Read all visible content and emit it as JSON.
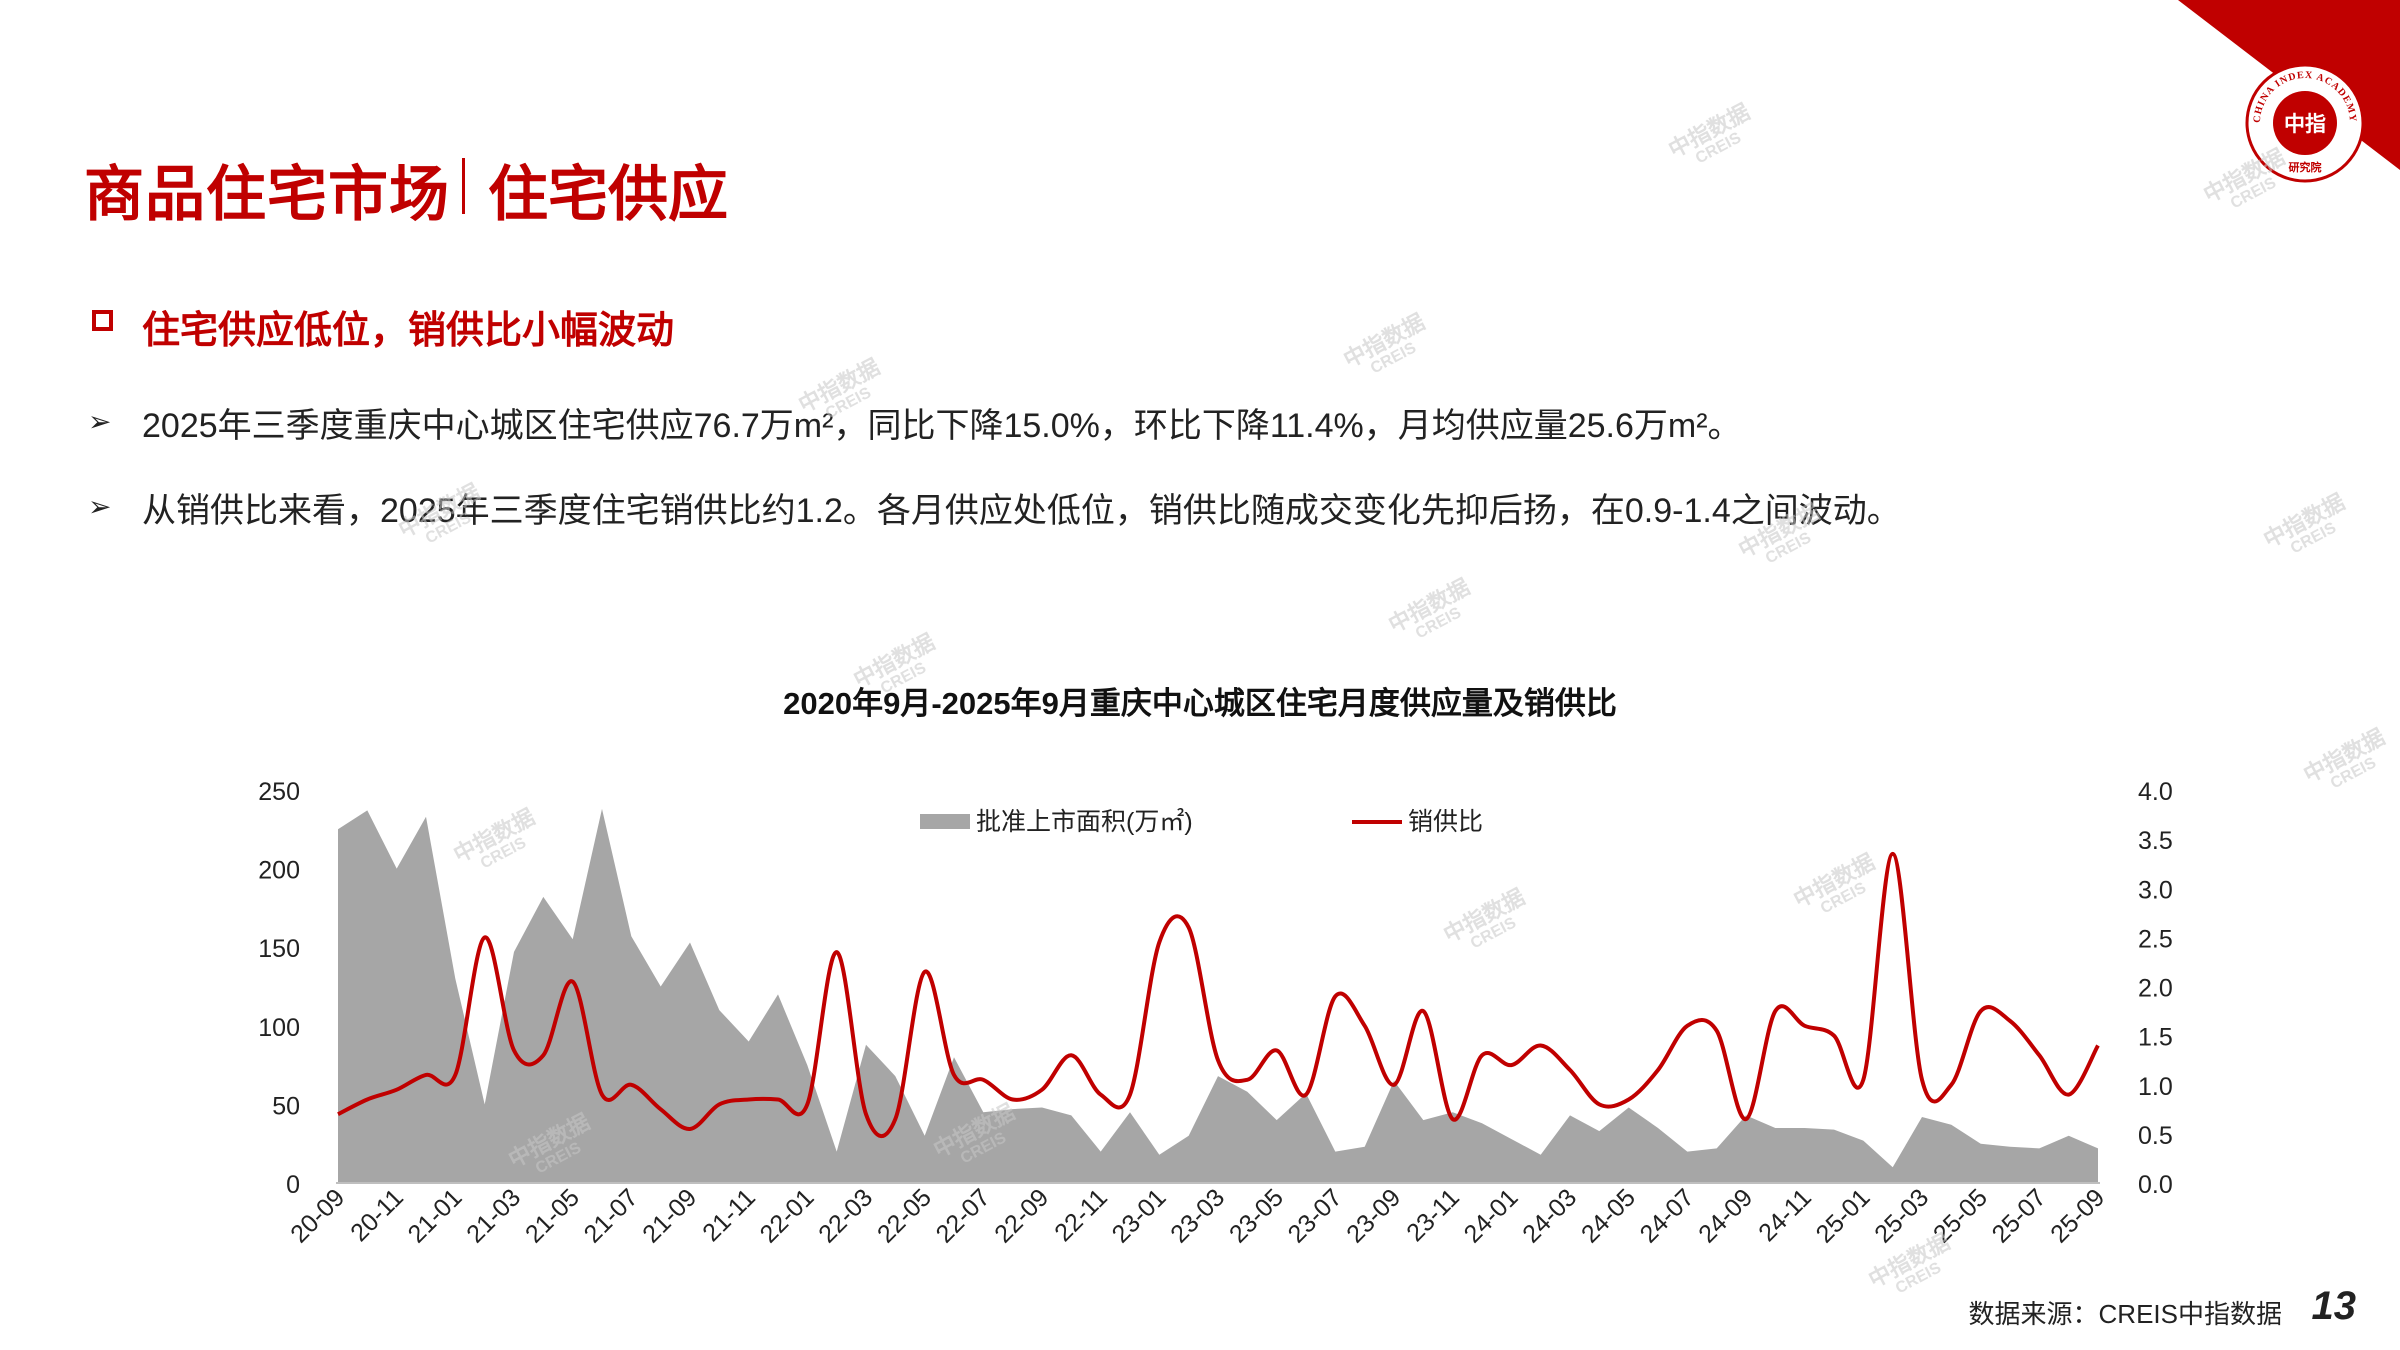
{
  "header": {
    "title_part1": "商品住宅市场",
    "title_part2": "住宅供应"
  },
  "logo": {
    "ring_text": "CHINA INDEX ACADEMY",
    "center_text": "中指",
    "bottom_text": "研究院"
  },
  "section": {
    "title": "住宅供应低位，销供比小幅波动"
  },
  "bullets": [
    "2025年三季度重庆中心城区住宅供应76.7万m²，同比下降15.0%，环比下降11.4%，月均供应量25.6万m²。",
    "从销供比来看，2025年三季度住宅销供比约1.2。各月供应处低位，销供比随成交变化先抑后扬，在0.9-1.4之间波动。"
  ],
  "watermark": {
    "line1": "中指数据",
    "line2": "CREIS"
  },
  "chart_data": {
    "type": "area",
    "title": "2020年9月-2025年9月重庆中心城区住宅月度供应量及销供比",
    "x": [
      "20-09",
      "20-10",
      "20-11",
      "20-12",
      "21-01",
      "21-02",
      "21-03",
      "21-04",
      "21-05",
      "21-06",
      "21-07",
      "21-08",
      "21-09",
      "21-10",
      "21-11",
      "21-12",
      "22-01",
      "22-02",
      "22-03",
      "22-04",
      "22-05",
      "22-06",
      "22-07",
      "22-08",
      "22-09",
      "22-10",
      "22-11",
      "22-12",
      "23-01",
      "23-02",
      "23-03",
      "23-04",
      "23-05",
      "23-06",
      "23-07",
      "23-08",
      "23-09",
      "23-10",
      "23-11",
      "23-12",
      "24-01",
      "24-02",
      "24-03",
      "24-04",
      "24-05",
      "24-06",
      "24-07",
      "24-08",
      "24-09",
      "24-10",
      "24-11",
      "24-12",
      "25-01",
      "25-02",
      "25-03",
      "25-04",
      "25-05",
      "25-06",
      "25-07",
      "25-08",
      "25-09"
    ],
    "x_tick_labels": [
      "20-09",
      "20-11",
      "21-01",
      "21-03",
      "21-05",
      "21-07",
      "21-09",
      "21-11",
      "22-01",
      "22-03",
      "22-05",
      "22-07",
      "22-09",
      "22-11",
      "23-01",
      "23-03",
      "23-05",
      "23-07",
      "23-09",
      "23-11",
      "24-01",
      "24-03",
      "24-05",
      "24-07",
      "24-09",
      "24-11",
      "25-01",
      "25-03",
      "25-05",
      "25-07",
      "25-09"
    ],
    "left_axis": {
      "ylim": [
        0,
        250
      ],
      "ticks": [
        "0",
        "50",
        "100",
        "150",
        "200",
        "250"
      ]
    },
    "right_axis": {
      "ylim": [
        0,
        4
      ],
      "ticks": [
        "0.0",
        "0.5",
        "1.0",
        "1.5",
        "2.0",
        "2.5",
        "3.0",
        "3.5",
        "4.0"
      ]
    },
    "legend_position": "top",
    "series": [
      {
        "name": "批准上市面积(万㎡)",
        "kind": "area",
        "axis": "left",
        "color": "#a6a6a6",
        "values": [
          225,
          237,
          200,
          233,
          130,
          50,
          147,
          182,
          155,
          238,
          157,
          125,
          153,
          110,
          90,
          120,
          75,
          20,
          88,
          68,
          30,
          80,
          45,
          47,
          48,
          43,
          20,
          45,
          18,
          30,
          68,
          58,
          40,
          57,
          20,
          23,
          65,
          40,
          45,
          38,
          28,
          18,
          43,
          33,
          48,
          35,
          20,
          22,
          43,
          35,
          35,
          34,
          27,
          10,
          42,
          37,
          25,
          23,
          22,
          30,
          22
        ]
      },
      {
        "name": "销供比",
        "kind": "line",
        "axis": "right",
        "color": "#c00000",
        "values": [
          0.7,
          0.85,
          0.95,
          1.1,
          1.1,
          2.5,
          1.35,
          1.3,
          2.05,
          0.9,
          1.0,
          0.75,
          0.55,
          0.8,
          0.85,
          0.85,
          0.8,
          2.35,
          0.7,
          0.65,
          2.15,
          1.1,
          1.05,
          0.85,
          0.95,
          1.3,
          0.9,
          0.9,
          2.45,
          2.6,
          1.25,
          1.05,
          1.35,
          0.9,
          1.9,
          1.6,
          1.0,
          1.75,
          0.65,
          1.3,
          1.2,
          1.4,
          1.15,
          0.8,
          0.85,
          1.15,
          1.6,
          1.55,
          0.65,
          1.75,
          1.6,
          1.5,
          1.05,
          3.35,
          1.05,
          1.0,
          1.75,
          1.65,
          1.3,
          0.9,
          1.4
        ]
      }
    ]
  },
  "footer": {
    "source": "数据来源：CREIS中指数据",
    "page_number": "13"
  }
}
